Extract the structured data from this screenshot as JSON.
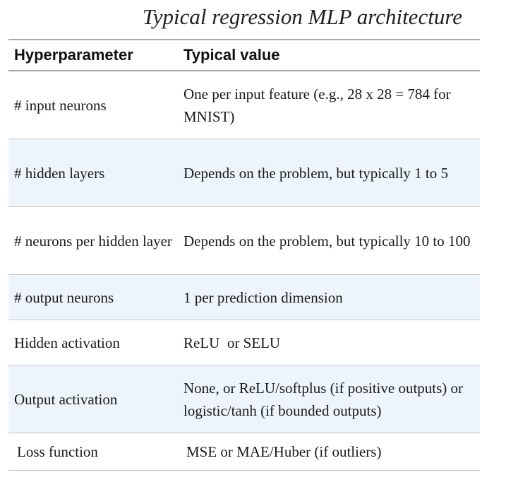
{
  "caption": "Typical regression MLP architecture",
  "table": {
    "headers": [
      "Hyperparameter",
      "Typical value"
    ],
    "rows": [
      {
        "param": "# input neurons",
        "value": "One per input feature (e.g., 28 x 28 = 784 for MNIST)"
      },
      {
        "param": "# hidden layers",
        "value": "Depends on the problem, but typically 1 to 5"
      },
      {
        "param": "# neurons per hidden layer",
        "value": "Depends on the problem, but typically 10 to 100"
      },
      {
        "param": "# output neurons",
        "value": "1 per prediction dimension"
      },
      {
        "param": "Hidden activation",
        "value": "ReLU  or SELU"
      },
      {
        "param": "Output activation",
        "value": "None, or ReLU/softplus (if positive outputs) or logistic/tanh (if bounded outputs)"
      },
      {
        "param": "Loss function",
        "value": "MSE or MAE/Huber (if outliers)"
      }
    ]
  }
}
